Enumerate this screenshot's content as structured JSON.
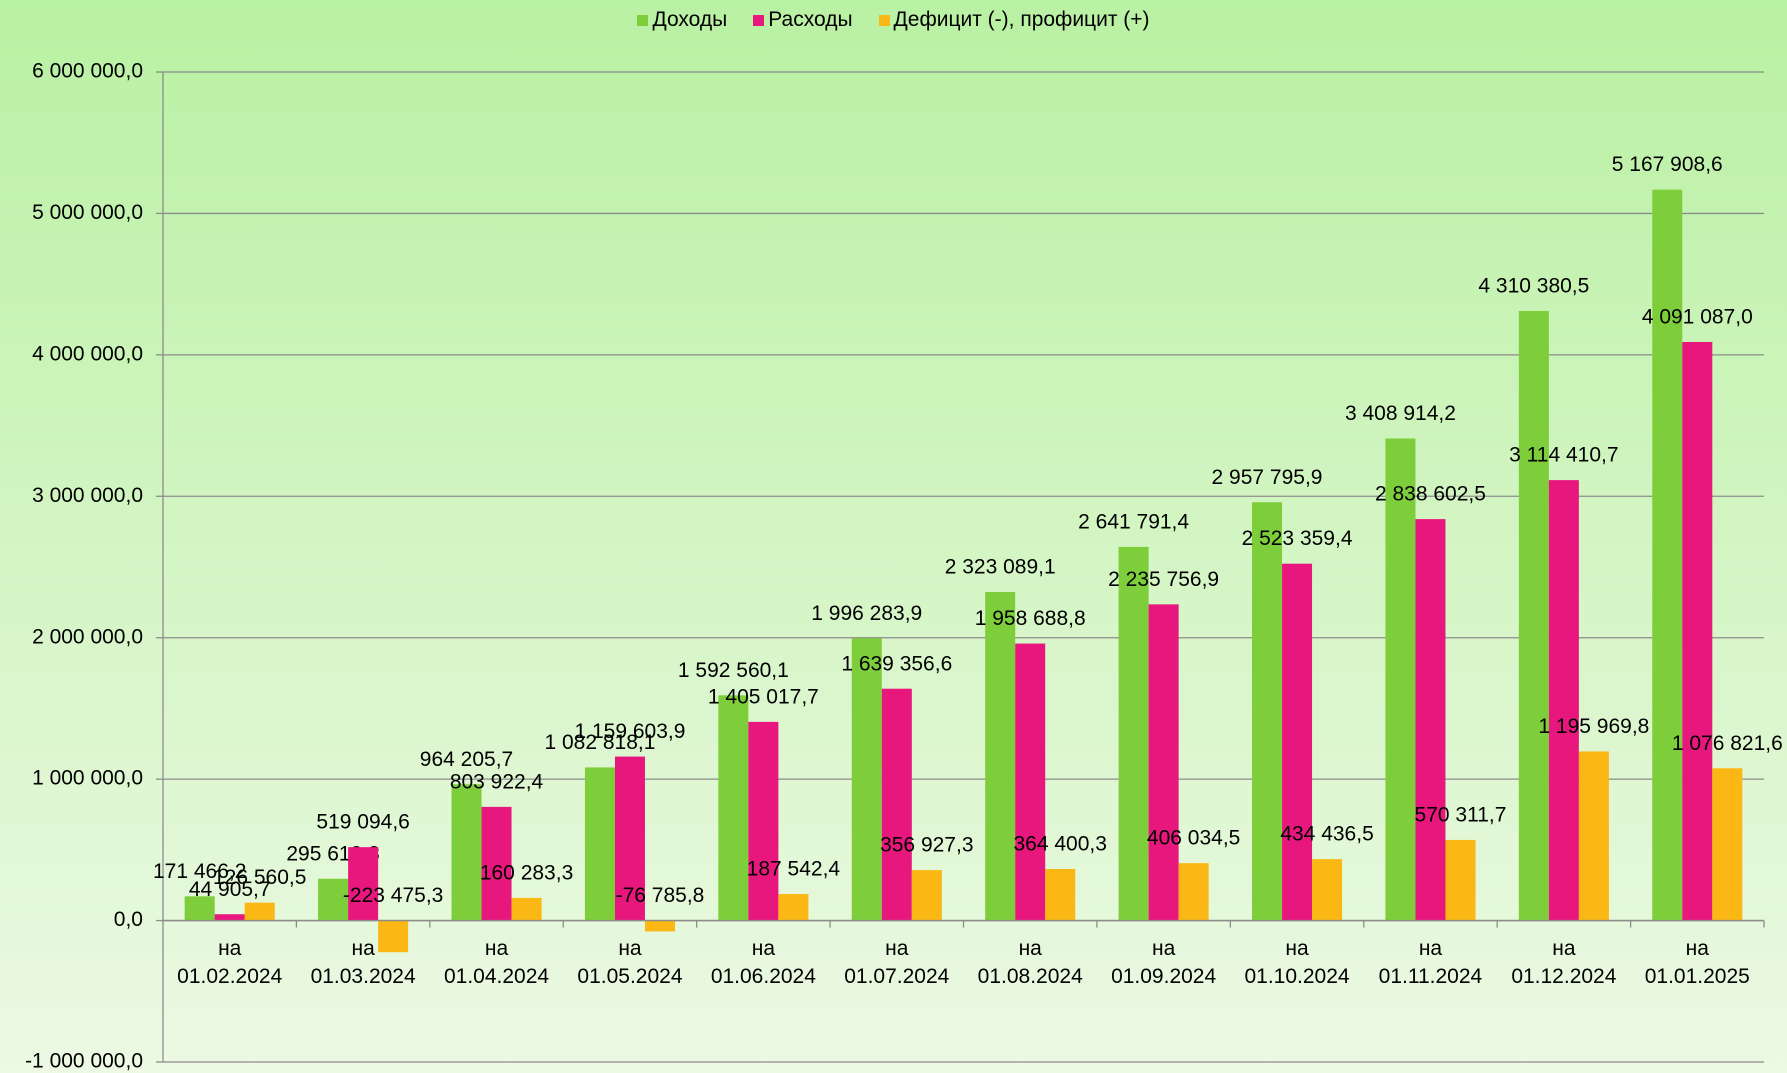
{
  "chart_data": {
    "type": "bar",
    "categories": [
      "на 01.02.2024",
      "на 01.03.2024",
      "на 01.04.2024",
      "на 01.05.2024",
      "на 01.06.2024",
      "на 01.07.2024",
      "на 01.08.2024",
      "на 01.09.2024",
      "на 01.10.2024",
      "на 01.11.2024",
      "на 01.12.2024",
      "на 01.01.2025"
    ],
    "series": [
      {
        "name": "Доходы",
        "color": "#7dce3a",
        "values": [
          171466.2,
          295619.3,
          964205.7,
          1082818.1,
          1592560.1,
          1996283.9,
          2323089.1,
          2641791.4,
          2957795.9,
          3408914.2,
          4310380.5,
          5167908.6
        ],
        "value_labels": [
          "171 466,2",
          "295 619,3",
          "964 205,7",
          "1 082 818,1",
          "1 592 560,1",
          "1 996 283,9",
          "2 323 089,1",
          "2 641 791,4",
          "2 957 795,9",
          "3 408 914,2",
          "4 310 380,5",
          "5 167 908,6"
        ]
      },
      {
        "name": "Расходы",
        "color": "#e8177d",
        "values": [
          44905.7,
          519094.6,
          803922.4,
          1159603.9,
          1405017.7,
          1639356.6,
          1958688.8,
          2235756.9,
          2523359.4,
          2838602.5,
          3114410.7,
          4091087.0
        ],
        "value_labels": [
          "44 905,7",
          "519 094,6",
          "803 922,4",
          "1 159 603,9",
          "1 405 017,7",
          "1 639 356,6",
          "1 958 688,8",
          "2 235 756,9",
          "2 523 359,4",
          "2 838 602,5",
          "3 114 410,7",
          "4 091 087,0"
        ]
      },
      {
        "name": "Дефицит (-), профицит (+)",
        "color": "#fbb713",
        "values": [
          126560.5,
          -223475.3,
          160283.3,
          -76785.8,
          187542.4,
          356927.3,
          364400.3,
          406034.5,
          434436.5,
          570311.7,
          1195969.8,
          1076821.6
        ],
        "value_labels": [
          "126 560,5",
          "-223 475,3",
          "160 283,3",
          "-76 785,8",
          "187 542,4",
          "356 927,3",
          "364 400,3",
          "406 034,5",
          "434 436,5",
          "570 311,7",
          "1 195 969,8",
          "1 076 821,6"
        ]
      }
    ],
    "ylim": [
      -1000000,
      6000000
    ],
    "yticks": [
      {
        "value": -1000000,
        "label": "-1 000 000,0"
      },
      {
        "value": 0,
        "label": "0,0"
      },
      {
        "value": 1000000,
        "label": "1 000 000,0"
      },
      {
        "value": 2000000,
        "label": "2 000 000,0"
      },
      {
        "value": 3000000,
        "label": "3 000 000,0"
      },
      {
        "value": 4000000,
        "label": "4 000 000,0"
      },
      {
        "value": 5000000,
        "label": "5 000 000,0"
      },
      {
        "value": 6000000,
        "label": "6 000 000,0"
      }
    ],
    "grid": true,
    "legend": "top"
  }
}
